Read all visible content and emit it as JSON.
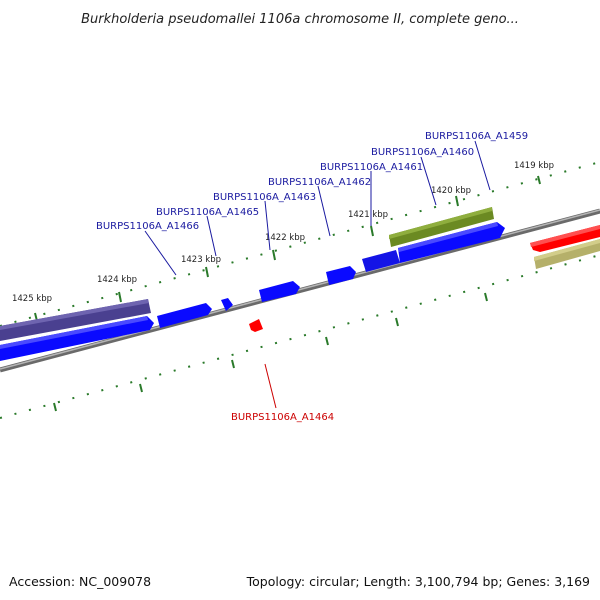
{
  "title": "Burkholderia pseudomallei 1106a chromosome II, complete geno...",
  "footer": {
    "accession": "Accession: NC_009078",
    "summary": "Topology: circular; Length: 3,100,794 bp; Genes: 3,169"
  },
  "colors": {
    "forward_gene": "#0a0aff",
    "reverse_gene": "#ff0000",
    "forward_label": "#1a1aa0",
    "reverse_label": "#cc0000",
    "backbone": "#8a8a8a",
    "tick": "#2a7a2a",
    "feature_olive": "#6b8a22",
    "feature_khaki": "#b5b06a",
    "feature_purple": "#4a4090"
  },
  "kbp_ticks": [
    {
      "label": "1419 kbp"
    },
    {
      "label": "1420 kbp"
    },
    {
      "label": "1421 kbp"
    },
    {
      "label": "1422 kbp"
    },
    {
      "label": "1423 kbp"
    },
    {
      "label": "1424 kbp"
    },
    {
      "label": "1425 kbp"
    }
  ],
  "genes": [
    {
      "label": "BURPS1106A_A1459",
      "strand": "forward"
    },
    {
      "label": "BURPS1106A_A1460",
      "strand": "forward"
    },
    {
      "label": "BURPS1106A_A1461",
      "strand": "forward"
    },
    {
      "label": "BURPS1106A_A1462",
      "strand": "forward"
    },
    {
      "label": "BURPS1106A_A1463",
      "strand": "forward"
    },
    {
      "label": "BURPS1106A_A1465",
      "strand": "forward"
    },
    {
      "label": "BURPS1106A_A1466",
      "strand": "forward"
    },
    {
      "label": "BURPS1106A_A1464",
      "strand": "reverse"
    }
  ]
}
